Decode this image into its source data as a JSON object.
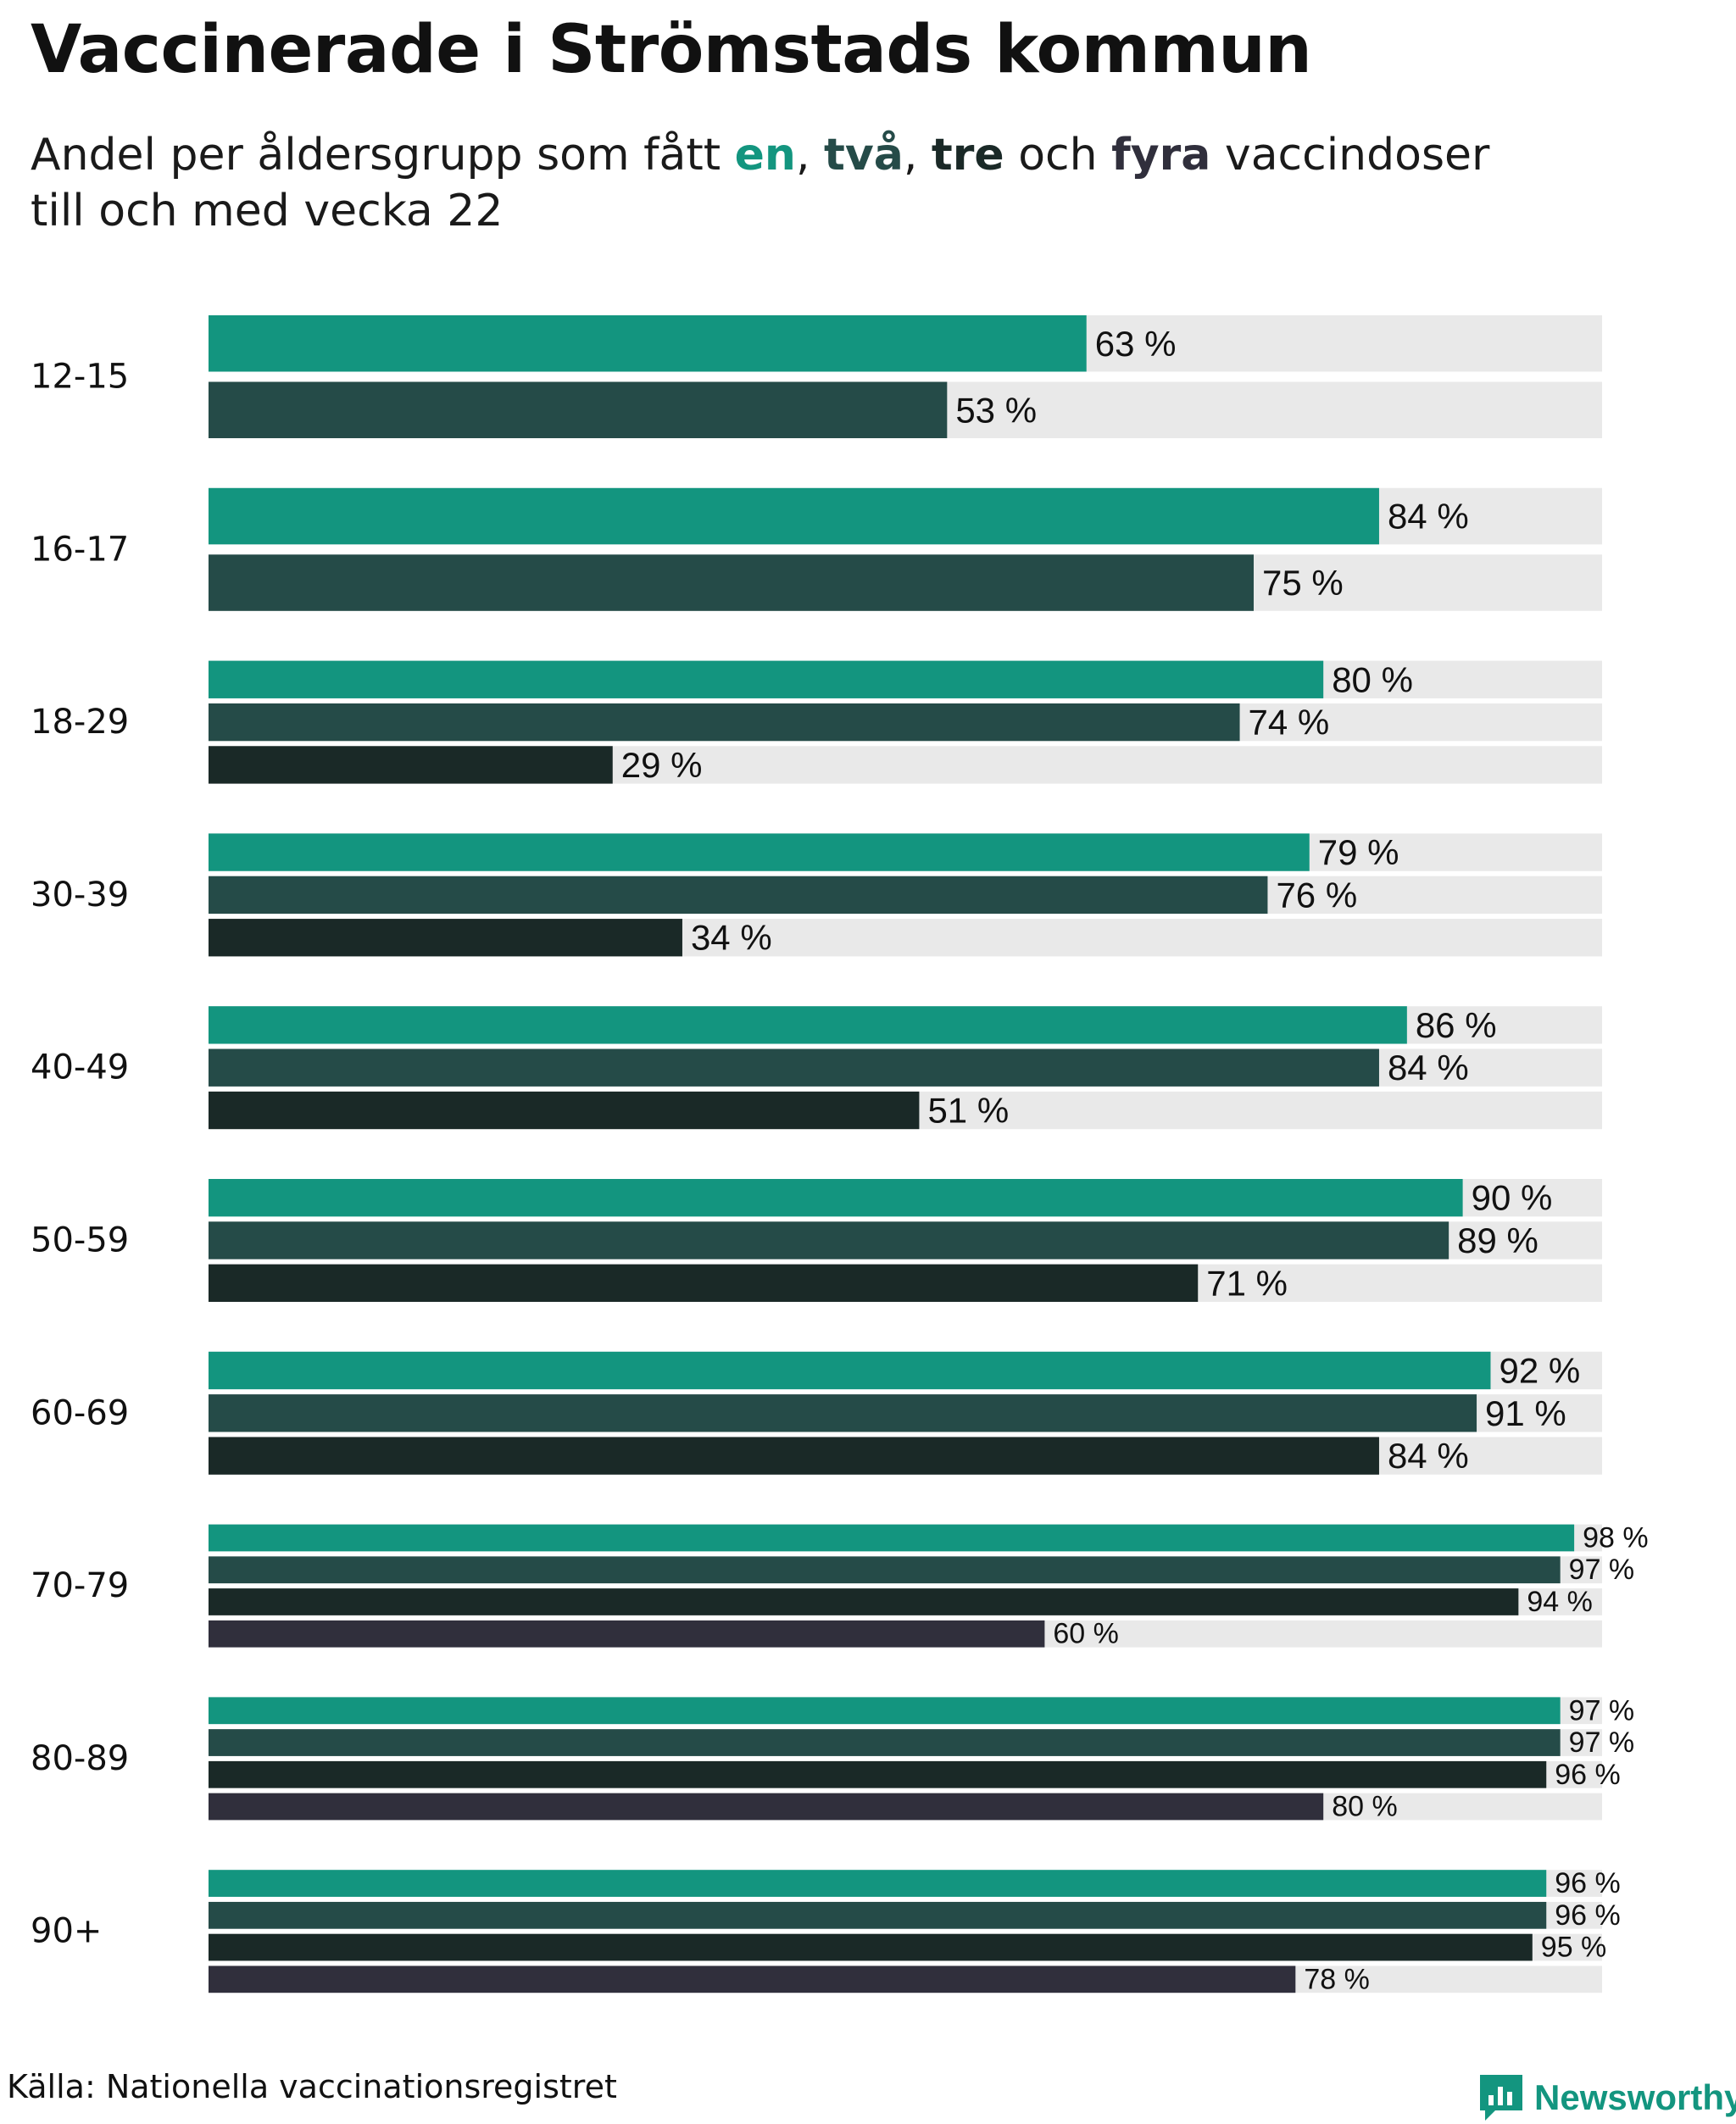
{
  "title": "Vaccinerade i Strömstads kommun",
  "subtitle": {
    "prefix": "Andel per åldersgrupp som fått ",
    "dose1": "en",
    "sep1": ", ",
    "dose2": "två",
    "sep2": ", ",
    "dose3": "tre",
    "mid": " och ",
    "dose4": "fyra",
    "suffix": " vaccindoser",
    "line2": "till och med vecka 22"
  },
  "colors": {
    "dose1": "#13957f",
    "dose2": "#254b48",
    "dose3": "#1a2927",
    "dose4": "#302f3c",
    "track": "#e9e9e9",
    "text": "#111111"
  },
  "chart_data": {
    "type": "bar",
    "orientation": "horizontal",
    "value_unit": "%",
    "xlim": [
      0,
      100
    ],
    "series_names": [
      "en",
      "två",
      "tre",
      "fyra"
    ],
    "groups": [
      {
        "label": "12-15",
        "values": [
          63,
          53
        ]
      },
      {
        "label": "16-17",
        "values": [
          84,
          75
        ]
      },
      {
        "label": "18-29",
        "values": [
          80,
          74,
          29
        ]
      },
      {
        "label": "30-39",
        "values": [
          79,
          76,
          34
        ]
      },
      {
        "label": "40-49",
        "values": [
          86,
          84,
          51
        ]
      },
      {
        "label": "50-59",
        "values": [
          90,
          89,
          71
        ]
      },
      {
        "label": "60-69",
        "values": [
          92,
          91,
          84
        ]
      },
      {
        "label": "70-79",
        "values": [
          98,
          97,
          94,
          60
        ]
      },
      {
        "label": "80-89",
        "values": [
          97,
          97,
          96,
          80
        ]
      },
      {
        "label": "90+",
        "values": [
          96,
          96,
          95,
          78
        ]
      }
    ]
  },
  "source": "Källa: Nationella vaccinationsregistret",
  "brand": "Newsworthy"
}
